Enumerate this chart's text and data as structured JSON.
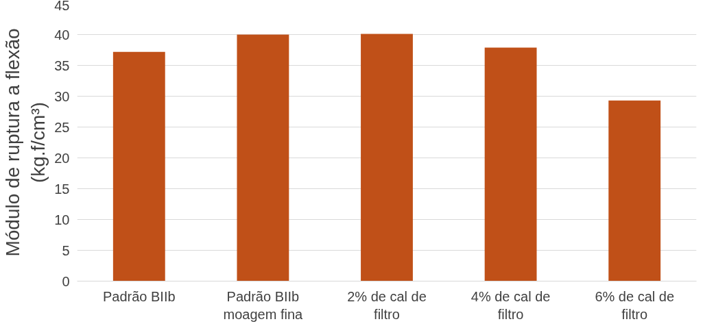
{
  "chart_data": {
    "type": "bar",
    "ylabel": "Módulo de ruptura a flexão\n(kg.f/cm³)",
    "categories": [
      "Padrão BIIb",
      "Padrão BIIb\nmoagem fina",
      "2% de cal de\nfiltro",
      "4% de cal de\nfiltro",
      "6% de cal de\nfiltro"
    ],
    "values": [
      37.2,
      40.0,
      40.1,
      37.9,
      29.3
    ],
    "color": "#c05018",
    "ylim": [
      0,
      45
    ],
    "yticks": [
      0,
      5,
      10,
      15,
      20,
      25,
      30,
      35,
      40,
      45
    ],
    "grid": "y"
  }
}
